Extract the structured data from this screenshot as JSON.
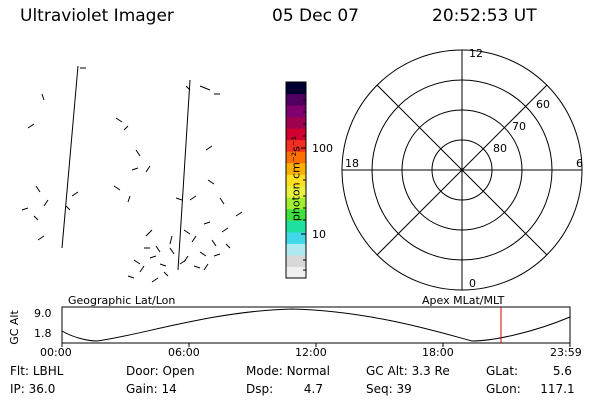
{
  "header": {
    "instrument": "Ultraviolet Imager",
    "date": "05 Dec 07",
    "time": "20:52:53 UT"
  },
  "map_panels": {
    "left_label": "Geographic Lat/Lon",
    "right_label": "Apex MLat/MLT"
  },
  "colorbar": {
    "unit_label": "photon cm⁻²s⁻¹",
    "ticks": [
      "100",
      "10"
    ],
    "colors": [
      "#f0f0f0",
      "#d8d8d8",
      "#b0e8f0",
      "#40d8e8",
      "#20e0a0",
      "#40e040",
      "#a0f030",
      "#e8f040",
      "#ffe020",
      "#ffb000",
      "#ff7000",
      "#f03020",
      "#d00030",
      "#a00050",
      "#800070",
      "#500060",
      "#000030"
    ]
  },
  "polar_plot": {
    "mlt_labels": [
      "12",
      "6",
      "0",
      "18"
    ],
    "lat_labels": [
      "80",
      "70",
      "60"
    ]
  },
  "altitude_plot": {
    "ylabel": "GC Alt",
    "yticks": [
      "9.0",
      "1.8"
    ],
    "xticks": [
      "00:00",
      "06:00",
      "12:00",
      "18:00",
      "23:59"
    ],
    "marker_color": "#cc0000"
  },
  "status": {
    "row1": [
      {
        "label": "Flt:",
        "value": "LBHL"
      },
      {
        "label": "Door:",
        "value": "Open"
      },
      {
        "label": "Mode:",
        "value": "Normal"
      },
      {
        "label": "GC Alt:",
        "value": "3.3 Re"
      },
      {
        "label": "GLat:",
        "value": "5.6"
      }
    ],
    "row2": [
      {
        "label": "IP:",
        "value": "36.0"
      },
      {
        "label": "Gain:",
        "value": "14"
      },
      {
        "label": "Dsp:",
        "value": "4.7"
      },
      {
        "label": "Seq:",
        "value": "39"
      },
      {
        "label": "GLon:",
        "value": "117.1"
      }
    ]
  }
}
